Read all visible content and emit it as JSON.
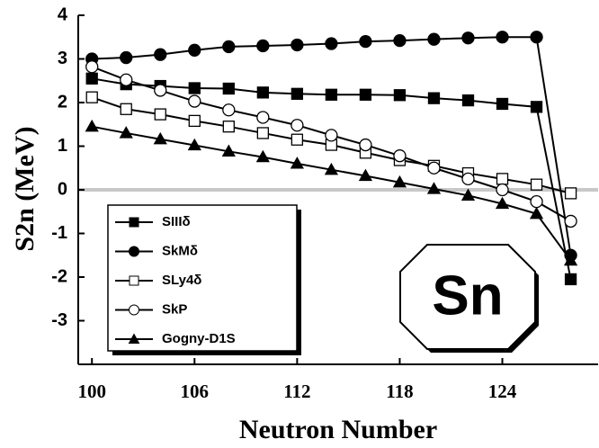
{
  "chart_data": {
    "type": "line",
    "x_label": "Neutron Number",
    "y_label": "S2n (MeV)",
    "annotation": "Sn",
    "x": [
      100,
      102,
      104,
      106,
      108,
      110,
      112,
      114,
      116,
      118,
      120,
      122,
      124,
      126,
      128
    ],
    "xlim": [
      99.2,
      129.6
    ],
    "xticks": [
      100,
      106,
      112,
      118,
      124
    ],
    "ylim": [
      -4,
      4
    ],
    "yticks": [
      -3,
      -2,
      -1,
      0,
      1,
      2,
      3,
      4
    ],
    "zero_line": true,
    "series": [
      {
        "name": "SIIIδ",
        "color": "#000000",
        "marker": "square-filled",
        "values": [
          2.55,
          2.42,
          2.38,
          2.33,
          2.32,
          2.23,
          2.2,
          2.18,
          2.18,
          2.17,
          2.1,
          2.05,
          1.97,
          1.9,
          -2.05
        ]
      },
      {
        "name": "SkMδ",
        "color": "#000000",
        "marker": "circle-filled",
        "values": [
          3.0,
          3.03,
          3.1,
          3.2,
          3.28,
          3.3,
          3.32,
          3.35,
          3.4,
          3.42,
          3.45,
          3.48,
          3.5,
          3.5,
          -1.5
        ]
      },
      {
        "name": "SLy4δ",
        "color": "#000000",
        "marker": "square-open",
        "values": [
          2.12,
          1.85,
          1.73,
          1.58,
          1.45,
          1.3,
          1.15,
          1.03,
          0.85,
          0.68,
          0.55,
          0.38,
          0.25,
          0.12,
          -0.08
        ]
      },
      {
        "name": "SkP",
        "color": "#000000",
        "marker": "circle-open",
        "values": [
          2.82,
          2.52,
          2.28,
          2.03,
          1.83,
          1.66,
          1.48,
          1.25,
          1.03,
          0.78,
          0.5,
          0.25,
          0.0,
          -0.27,
          -0.72
        ]
      },
      {
        "name": "Gogny-D1S",
        "color": "#000000",
        "marker": "triangle-filled",
        "values": [
          1.45,
          1.3,
          1.16,
          1.02,
          0.88,
          0.75,
          0.6,
          0.46,
          0.32,
          0.17,
          0.02,
          -0.13,
          -0.32,
          -0.55,
          -1.62
        ]
      }
    ]
  }
}
